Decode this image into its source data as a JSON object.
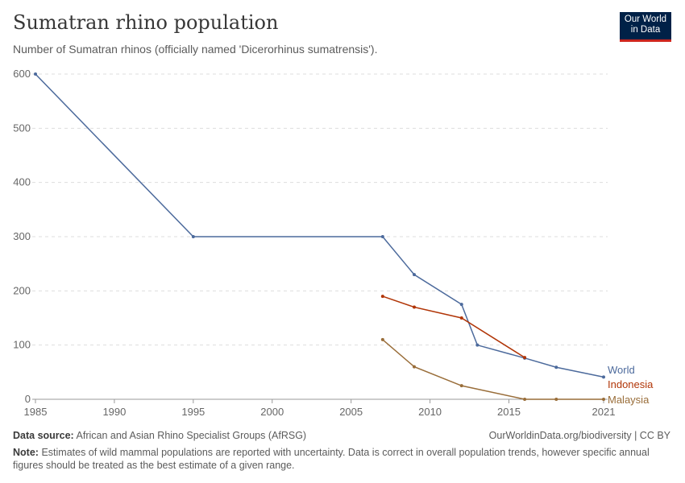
{
  "title": "Sumatran rhino population",
  "subtitle": "Number of Sumatran rhinos (officially named 'Dicerorhinus sumatrensis').",
  "logo": {
    "line1": "Our World",
    "line2": "in Data"
  },
  "footer": {
    "source_label": "Data source:",
    "source": "African and Asian Rhino Specialist Groups (AfRSG)",
    "url": "OurWorldinData.org/biodiversity | CC BY",
    "note_label": "Note:",
    "note": "Estimates of wild mammal populations are reported with uncertainty. Data is correct in overall population trends, however specific annual figures should be treated as the best estimate of a given range."
  },
  "chart_data": {
    "type": "line",
    "xlim": [
      1985,
      2021
    ],
    "ylim": [
      0,
      600
    ],
    "x_ticks": [
      "1985",
      "1990",
      "1995",
      "2000",
      "2005",
      "2010",
      "2015",
      "2021"
    ],
    "y_ticks": [
      "0",
      "100",
      "200",
      "300",
      "400",
      "500",
      "600"
    ],
    "grid": "horizontal dashed",
    "legend": "inline-right",
    "series": [
      {
        "name": "World",
        "color": "#4c6a9c",
        "points": [
          [
            1985,
            600
          ],
          [
            1995,
            300
          ],
          [
            2007,
            300
          ],
          [
            2009,
            230
          ],
          [
            2012,
            175
          ],
          [
            2013,
            100
          ],
          [
            2016,
            76
          ],
          [
            2018,
            59
          ],
          [
            2021,
            41
          ]
        ]
      },
      {
        "name": "Indonesia",
        "color": "#b13507",
        "points": [
          [
            2007,
            190
          ],
          [
            2009,
            170
          ],
          [
            2012,
            150
          ],
          [
            2016,
            77
          ]
        ]
      },
      {
        "name": "Malaysia",
        "color": "#996d39",
        "points": [
          [
            2007,
            110
          ],
          [
            2009,
            60
          ],
          [
            2012,
            25
          ],
          [
            2016,
            0
          ],
          [
            2018,
            0
          ],
          [
            2021,
            0
          ]
        ]
      }
    ]
  }
}
